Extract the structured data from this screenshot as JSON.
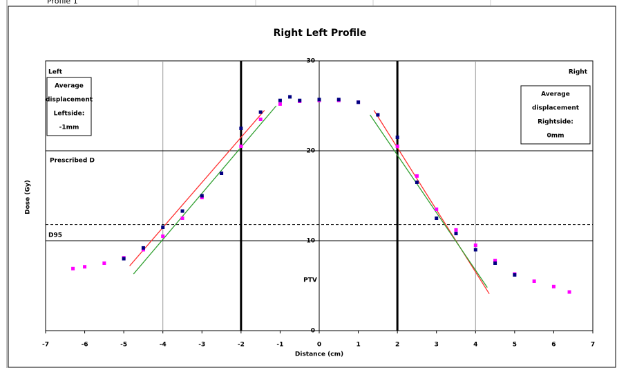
{
  "sheet": {
    "label": "Profile 1"
  },
  "chart_data": {
    "type": "scatter",
    "title": "Right Left Profile",
    "x_label": "Distance (cm)",
    "y_label": "Dose (Gy)",
    "xlim": [
      -7,
      7
    ],
    "xticks": [
      -7,
      -6,
      -5,
      -4,
      -3,
      -2,
      -1,
      0,
      1,
      2,
      3,
      4,
      5,
      6,
      7
    ],
    "ylim": [
      0,
      30
    ],
    "yticks": [
      0,
      10,
      20,
      30
    ],
    "x_grid": [
      -4,
      4
    ],
    "reference_lines": {
      "x": [
        -2,
        2
      ],
      "y": [
        20,
        10
      ],
      "y_dashed": [
        11.8
      ]
    },
    "series": [
      {
        "color": "#ff00ff",
        "x": [
          -6.3,
          -6,
          -5.5,
          -5,
          -4.5,
          -4,
          -3.5,
          -3,
          -2.5,
          -2,
          -1.5,
          -1,
          -0.5,
          0,
          0.5,
          1,
          1.5,
          2,
          2.5,
          3,
          3.5,
          4,
          4.5,
          5,
          5.5,
          6,
          6.4
        ],
        "values": [
          6.9,
          7.1,
          7.5,
          8.1,
          9.0,
          10.5,
          12.5,
          14.8,
          17.5,
          20.5,
          23.5,
          25.2,
          25.5,
          25.6,
          25.6,
          25.4,
          24.0,
          20.5,
          17.2,
          13.5,
          11.2,
          9.5,
          7.8,
          6.3,
          5.5,
          4.9,
          4.3
        ]
      },
      {
        "color": "#000080",
        "x": [
          -5,
          -4.5,
          -4,
          -3.5,
          -3,
          -2.5,
          -2,
          -1.5,
          -1,
          -0.75,
          -0.5,
          0,
          0.5,
          1,
          1.5,
          2,
          2.5,
          3,
          3.5,
          4,
          4.5,
          5
        ],
        "values": [
          8.0,
          9.2,
          11.5,
          13.3,
          15.0,
          17.5,
          22.5,
          24.3,
          25.6,
          26.0,
          25.6,
          25.7,
          25.7,
          25.4,
          24.0,
          21.5,
          16.5,
          12.5,
          10.8,
          9.0,
          7.5,
          6.2
        ]
      }
    ],
    "fit_lines": [
      {
        "color": "#ff3030",
        "x": [
          -4.85,
          -1.4
        ],
        "values": [
          7.2,
          24.5
        ]
      },
      {
        "color": "#30a030",
        "x": [
          -4.75,
          -1.1
        ],
        "values": [
          6.3,
          25.0
        ]
      },
      {
        "color": "#ff3030",
        "x": [
          1.4,
          4.35
        ],
        "values": [
          24.5,
          4.1
        ]
      },
      {
        "color": "#30a030",
        "x": [
          1.3,
          4.3
        ],
        "values": [
          24.0,
          4.8
        ]
      }
    ],
    "annotations": {
      "left": "Left",
      "right": "Right",
      "left_box": [
        "Average",
        "displacement",
        "Leftside:",
        "-1mm"
      ],
      "right_box": [
        "Average",
        "displacement",
        "Rightside:",
        "0mm"
      ],
      "prescribed": "Prescribed D",
      "d95": "D95",
      "ptv": "PTV"
    }
  }
}
